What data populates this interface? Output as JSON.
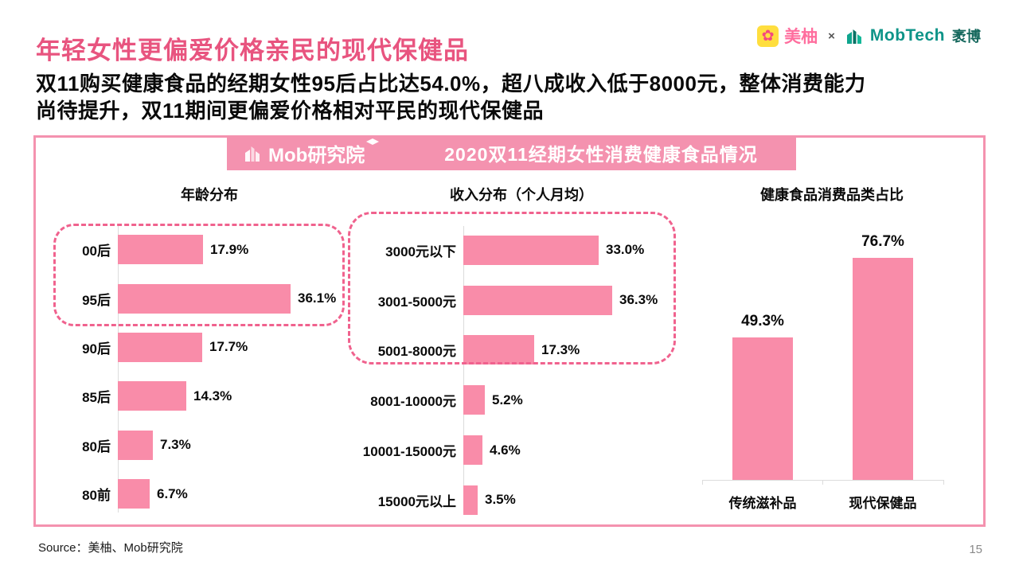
{
  "page": {
    "title": "年轻女性更偏爱价格亲民的现代保健品",
    "subtitle_line1": "双11购买健康食品的经期女性95后占比达54.0%，超八成收入低于8000元，整体消费能力",
    "subtitle_line2": "尚待提升，双11期间更偏爱价格相对平民的现代保健品",
    "source": "Source：美柚、Mob研究院",
    "page_number": "15"
  },
  "header_logos": {
    "meiyou_label": "美柚",
    "meiyou_icon_glyph": "✿",
    "separator": "×",
    "mobtech_label": "MobTech",
    "mobtech_suffix": "袤博"
  },
  "banner": {
    "logo_text": "Mob研究院",
    "title": "2020双11经期女性消费健康食品情况"
  },
  "colors": {
    "bar_pink": "#F98CA9",
    "banner_pink": "#F492AF",
    "title_pink": "#E8547F",
    "dashed_highlight_pink": "#F0628E",
    "axis_gray": "#DCDCDC",
    "mobtech_teal": "#0E9488",
    "meiyou_pink": "#FF6E9E",
    "meiyou_yellow": "#FFDE3E"
  },
  "chart_data": [
    {
      "type": "bar",
      "orientation": "horizontal",
      "title": "年龄分布",
      "categories": [
        "00后",
        "95后",
        "90后",
        "85后",
        "80后",
        "80前"
      ],
      "values": [
        17.9,
        36.1,
        17.7,
        14.3,
        7.3,
        6.7
      ],
      "labels": [
        "17.9%",
        "36.1%",
        "17.7%",
        "14.3%",
        "7.3%",
        "6.7%"
      ],
      "xlim": [
        0,
        40
      ],
      "grid": false,
      "highlight": {
        "style": "dashed-pink-rounded-box",
        "rows": [
          "00后",
          "95后"
        ]
      }
    },
    {
      "type": "bar",
      "orientation": "horizontal",
      "title": "收入分布（个人月均）",
      "categories": [
        "3000元以下",
        "3001-5000元",
        "5001-8000元",
        "8001-10000元",
        "10001-15000元",
        "15000元以上"
      ],
      "values": [
        33.0,
        36.3,
        17.3,
        5.2,
        4.6,
        3.5
      ],
      "labels": [
        "33.0%",
        "36.3%",
        "17.3%",
        "5.2%",
        "4.6%",
        "3.5%"
      ],
      "xlim": [
        0,
        40
      ],
      "grid": false,
      "highlight": {
        "style": "dashed-pink-rounded-box",
        "rows": [
          "3000元以下",
          "3001-5000元",
          "5001-8000元"
        ]
      }
    },
    {
      "type": "bar",
      "orientation": "vertical",
      "title": "健康食品消费品类占比",
      "categories": [
        "传统滋补品",
        "现代保健品"
      ],
      "values": [
        49.3,
        76.7
      ],
      "labels": [
        "49.3%",
        "76.7%"
      ],
      "ylim": [
        0,
        80
      ],
      "grid": false
    }
  ]
}
